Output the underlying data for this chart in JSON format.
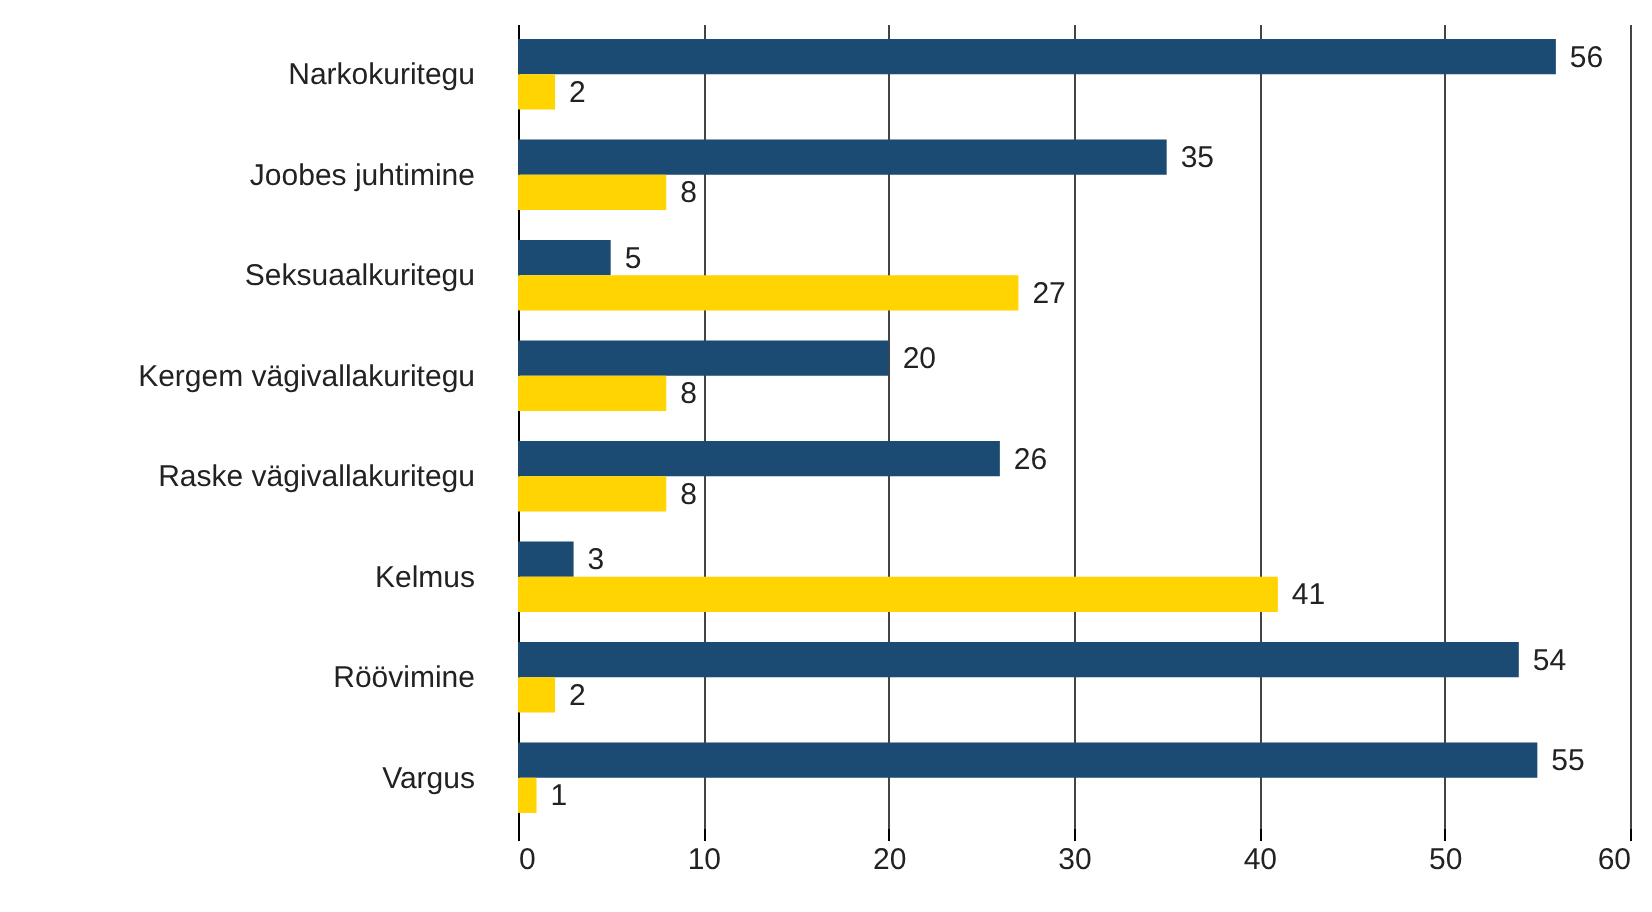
{
  "chart_data": {
    "type": "bar",
    "orientation": "horizontal",
    "categories": [
      "Narkokuritegu",
      "Joobes juhtimine",
      "Seksuaalkuritegu",
      "Kergem vägivallakuritegu",
      "Raske vägivallakuritegu",
      "Kelmus",
      "Röövimine",
      "Vargus"
    ],
    "series": [
      {
        "color": "#1b4a72",
        "values": [
          56,
          35,
          5,
          20,
          26,
          3,
          54,
          55
        ]
      },
      {
        "color": "#ffd400",
        "values": [
          2,
          8,
          27,
          8,
          8,
          41,
          2,
          1
        ]
      }
    ],
    "xlim": [
      0,
      60
    ],
    "xticks": [
      0,
      10,
      20,
      30,
      40,
      50,
      60
    ],
    "grid": "x",
    "data_labels": true
  }
}
